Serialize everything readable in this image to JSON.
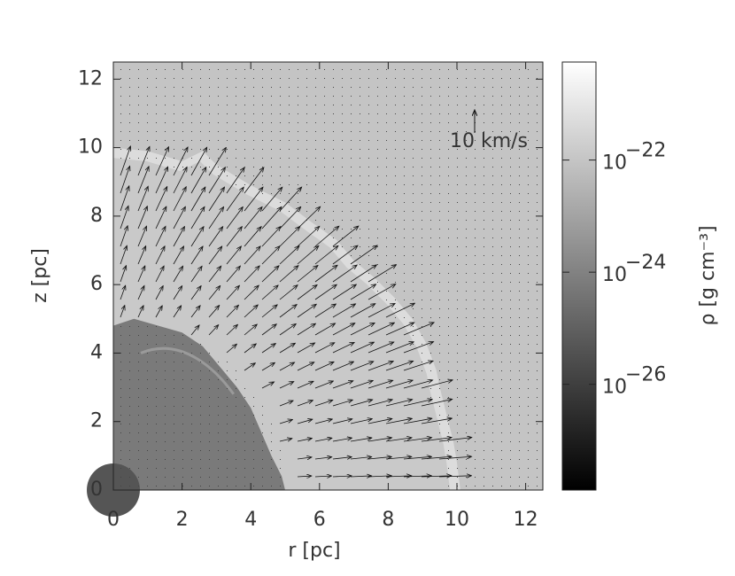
{
  "chart_data": {
    "type": "density-map",
    "xlabel": "r [pc]",
    "ylabel": "z [pc]",
    "xlim": [
      0,
      12.5
    ],
    "ylim": [
      0,
      12.5
    ],
    "xticks": [
      0,
      2,
      4,
      6,
      8,
      10,
      12
    ],
    "yticks": [
      0,
      2,
      4,
      6,
      8,
      10,
      12
    ],
    "annotation": "10 km/s",
    "colorbar_label": "ρ [g cm⁻³]",
    "colorbar_log": true,
    "clim": [
      1.3e-28,
      5.6e-21
    ],
    "colorbar_ticks": [
      {
        "value": 1e-22,
        "base": "10",
        "exponent": "−22"
      },
      {
        "value": 1e-24,
        "base": "10",
        "exponent": "−24"
      },
      {
        "value": 1e-26,
        "base": "10",
        "exponent": "−26"
      }
    ]
  }
}
